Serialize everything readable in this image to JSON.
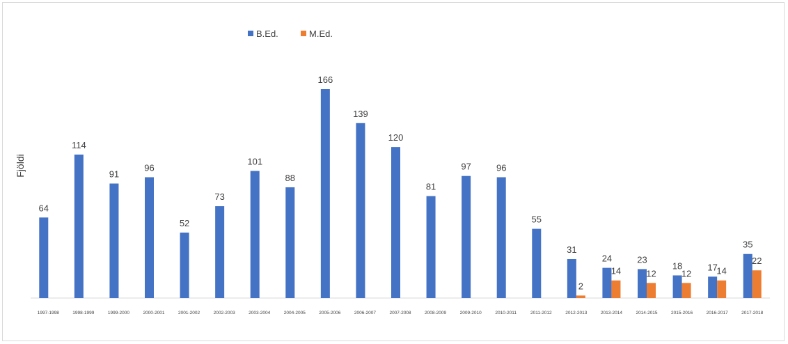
{
  "chart_data": {
    "type": "bar",
    "title": "",
    "xlabel": "",
    "ylabel": "Fjöldi",
    "ylim": [
      0,
      180
    ],
    "grid": false,
    "legend": "top-left",
    "categories": [
      "1997-1998",
      "1998-1999",
      "1999-2000",
      "2000-2001",
      "2001-2002",
      "2002-2003",
      "2003-2004",
      "2004-2005",
      "2005-2006",
      "2006-2007",
      "2007-2008",
      "2008-2009",
      "2009-2010",
      "2010-2011",
      "2011-2012",
      "2012-2013",
      "2013-2014",
      "2014-2015",
      "2015-2016",
      "2016-2017",
      "2017-2018"
    ],
    "series": [
      {
        "name": "B.Ed.",
        "color": "#4472c4",
        "values": [
          64,
          114,
          91,
          96,
          52,
          73,
          101,
          88,
          166,
          139,
          120,
          81,
          97,
          96,
          55,
          31,
          24,
          23,
          18,
          17,
          35
        ]
      },
      {
        "name": "M.Ed.",
        "color": "#ed7d31",
        "values": [
          null,
          null,
          null,
          null,
          null,
          null,
          null,
          null,
          null,
          null,
          null,
          null,
          null,
          null,
          null,
          2,
          14,
          12,
          12,
          14,
          22
        ]
      }
    ]
  }
}
